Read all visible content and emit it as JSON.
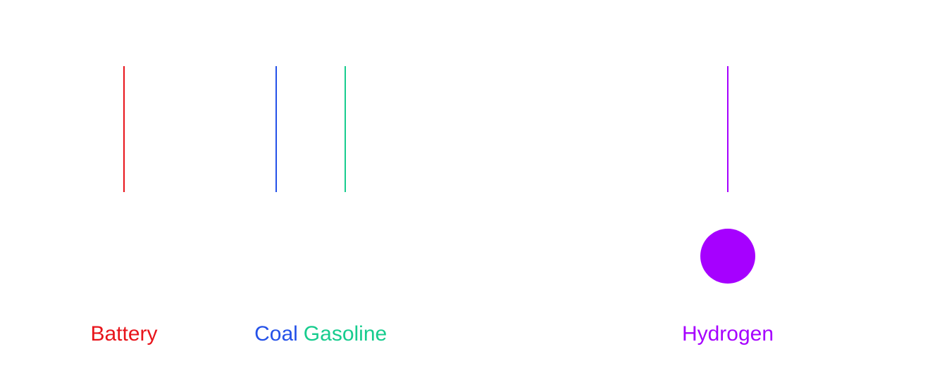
{
  "chart_data": {
    "type": "scatter",
    "categories": [
      "Battery",
      "Coal",
      "Gasoline",
      "Hydrogen"
    ],
    "colors": [
      "#e8141b",
      "#2451e8",
      "#17cc8e",
      "#a600ff"
    ],
    "series": [
      {
        "category": "Hydrogen",
        "marker": "circle"
      }
    ],
    "title": "",
    "xlabel": "",
    "ylabel": "",
    "grid": false,
    "legend": "none"
  }
}
